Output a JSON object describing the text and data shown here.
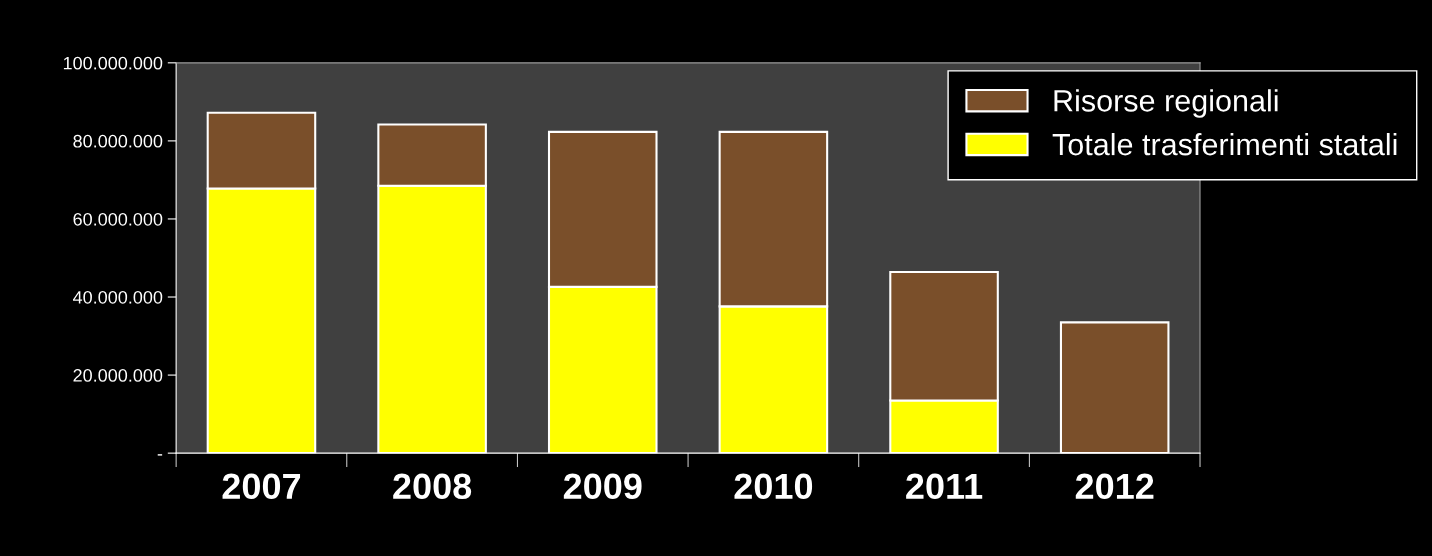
{
  "chart_data": {
    "type": "bar",
    "stacked": true,
    "categories": [
      "2007",
      "2008",
      "2009",
      "2010",
      "2011",
      "2012"
    ],
    "series": [
      {
        "name": "Totale trasferimenti statali",
        "color": "#ffff00",
        "values": [
          67800000,
          68500000,
          42600000,
          37600000,
          13500000,
          0
        ]
      },
      {
        "name": "Risorse regionali",
        "color": "#7a4f2a",
        "values": [
          19400000,
          15700000,
          39700000,
          44700000,
          32900000,
          33500000
        ]
      }
    ],
    "ylim": [
      0,
      100000000
    ],
    "yticks": [
      {
        "value": 0,
        "label": "-"
      },
      {
        "value": 20000000,
        "label": "20.000.000"
      },
      {
        "value": 40000000,
        "label": "40.000.000"
      },
      {
        "value": 60000000,
        "label": "60.000.000"
      },
      {
        "value": 80000000,
        "label": "80.000.000"
      },
      {
        "value": 100000000,
        "label": "100.000.000"
      }
    ],
    "grid": false,
    "legend": "top right"
  }
}
